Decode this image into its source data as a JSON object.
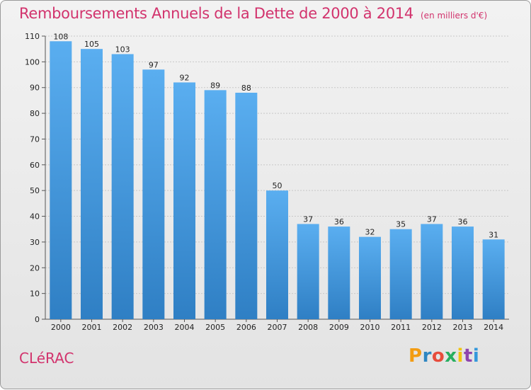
{
  "header": {
    "title": "Remboursements Annuels de la Dette de 2000 à 2014",
    "unit": "(en milliers d'€)"
  },
  "footer": {
    "commune": "CLéRAC",
    "logo_letters": [
      "P",
      "r",
      "o",
      "x",
      "i",
      "t",
      "i"
    ],
    "logo_colors": [
      "#f39c12",
      "#2e86c1",
      "#e74c3c",
      "#27ae60",
      "#f1c40f",
      "#8e44ad",
      "#3498db"
    ]
  },
  "colors": {
    "title": "#d2336d",
    "bar_top": "#5aaef0",
    "bar_bottom": "#2f7fc4",
    "grid": "#c8c8c8"
  },
  "chart_data": {
    "type": "bar",
    "title": "Remboursements Annuels de la Dette de 2000 à 2014",
    "subtitle": "(en milliers d'€)",
    "xlabel": "",
    "ylabel": "",
    "categories": [
      "2000",
      "2001",
      "2002",
      "2003",
      "2004",
      "2005",
      "2006",
      "2007",
      "2008",
      "2009",
      "2010",
      "2011",
      "2012",
      "2013",
      "2014"
    ],
    "values": [
      108,
      105,
      103,
      97,
      92,
      89,
      88,
      50,
      37,
      36,
      32,
      35,
      37,
      36,
      31
    ],
    "ylim": [
      0,
      110
    ],
    "yticks": [
      0,
      10,
      20,
      30,
      40,
      50,
      60,
      70,
      80,
      90,
      100,
      110
    ],
    "grid": true,
    "data_labels": true
  }
}
